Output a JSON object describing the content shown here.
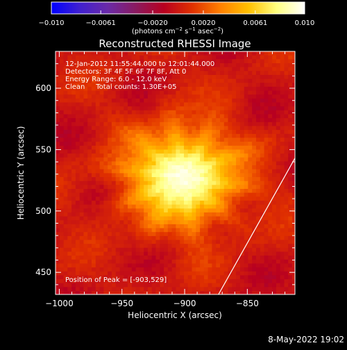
{
  "chart_data": {
    "type": "heatmap",
    "title": "Reconstructed RHESSI Image",
    "xlabel": "Heliocentric X (arcsec)",
    "ylabel": "Heliocentric Y (arcsec)",
    "xlim": [
      -1003,
      -812
    ],
    "ylim": [
      432,
      630
    ],
    "x_ticks": [
      -1000,
      -950,
      -900,
      -850
    ],
    "x_tick_labels": [
      "−1000",
      "−950",
      "−900",
      "−850"
    ],
    "y_ticks": [
      450,
      500,
      550,
      600
    ],
    "y_tick_labels": [
      "450",
      "500",
      "550",
      "600"
    ],
    "colorbar": {
      "range": [
        -0.01,
        0.01
      ],
      "ticks": [
        -0.01,
        -0.0061,
        -0.002,
        0.002,
        0.0061,
        0.01
      ],
      "tick_labels": [
        "−0.010",
        "−0.0061",
        "−0.0020",
        "0.0020",
        "0.0061",
        "0.010"
      ],
      "unit_label": "(photons cm",
      "unit_sup1": "−2",
      "unit_mid": " s",
      "unit_sup2": "−1",
      "unit_mid2": " asec",
      "unit_sup3": "−2",
      "unit_end": ")",
      "colormap": [
        "#0000ff",
        "#4020d0",
        "#6a2aa8",
        "#8a1a60",
        "#b80020",
        "#e03000",
        "#ff8000",
        "#ffc000",
        "#ffff80",
        "#ffffff"
      ]
    },
    "source": {
      "peak": [
        -903,
        529
      ],
      "sigma_x": 30,
      "sigma_y": 26,
      "limb_line": [
        [
          -873,
          432
        ],
        [
          -812,
          543
        ]
      ]
    },
    "annotations": {
      "time_range": "12-Jan-2012 11:55:44.000 to 12:01:44.000",
      "detectors": "Detectors: 3F 4F 5F 6F 7F 8F, Att 0",
      "energy": "Energy Range: 6.0 - 12.0 keV",
      "clean": "Clean     Total counts: 1.30E+05",
      "peak": "Position of Peak = [-903,529]"
    },
    "grid": false,
    "legend": "none"
  },
  "footer": {
    "date": "8-May-2022 19:02"
  }
}
